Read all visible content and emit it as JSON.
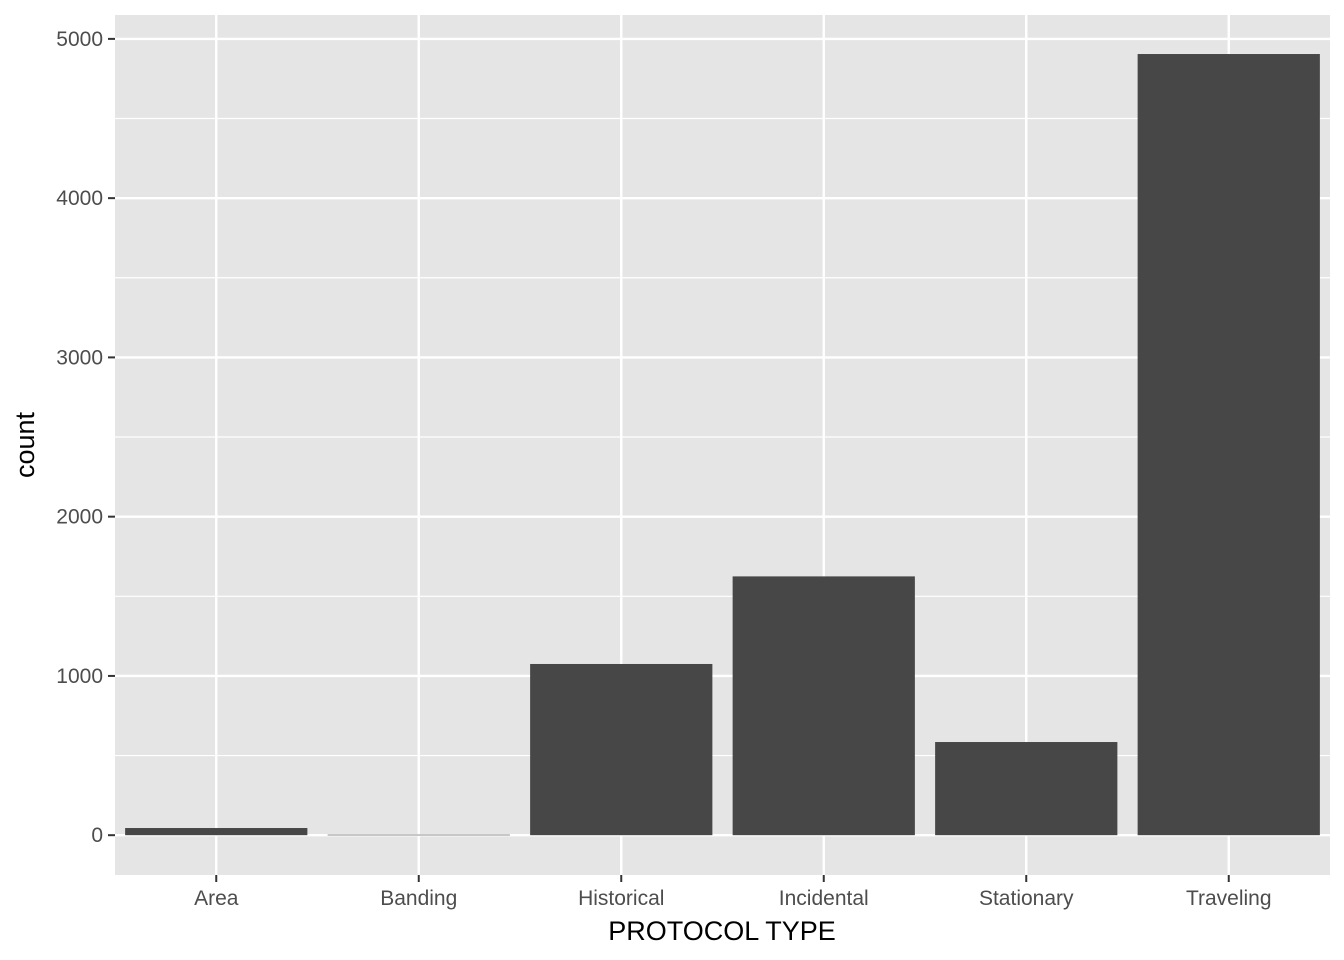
{
  "chart_data": {
    "type": "bar",
    "categories": [
      "Area",
      "Banding",
      "Historical",
      "Incidental",
      "Stationary",
      "Traveling"
    ],
    "values": [
      45,
      3,
      1075,
      1625,
      585,
      4905
    ],
    "title": "",
    "xlabel": "PROTOCOL TYPE",
    "ylabel": "count",
    "ylim": [
      -250,
      5150
    ],
    "yticks": [
      0,
      1000,
      2000,
      3000,
      4000,
      5000
    ],
    "ytick_labels": [
      "0",
      "1000",
      "2000",
      "3000",
      "4000",
      "5000"
    ],
    "grid": true,
    "legend": "none",
    "colors": {
      "panel_background": "#e5e5e5",
      "grid_line": "#ffffff",
      "bar_fill": "#474747",
      "tick_text": "#4d4d4d",
      "axis_title_text": "#000000"
    }
  }
}
